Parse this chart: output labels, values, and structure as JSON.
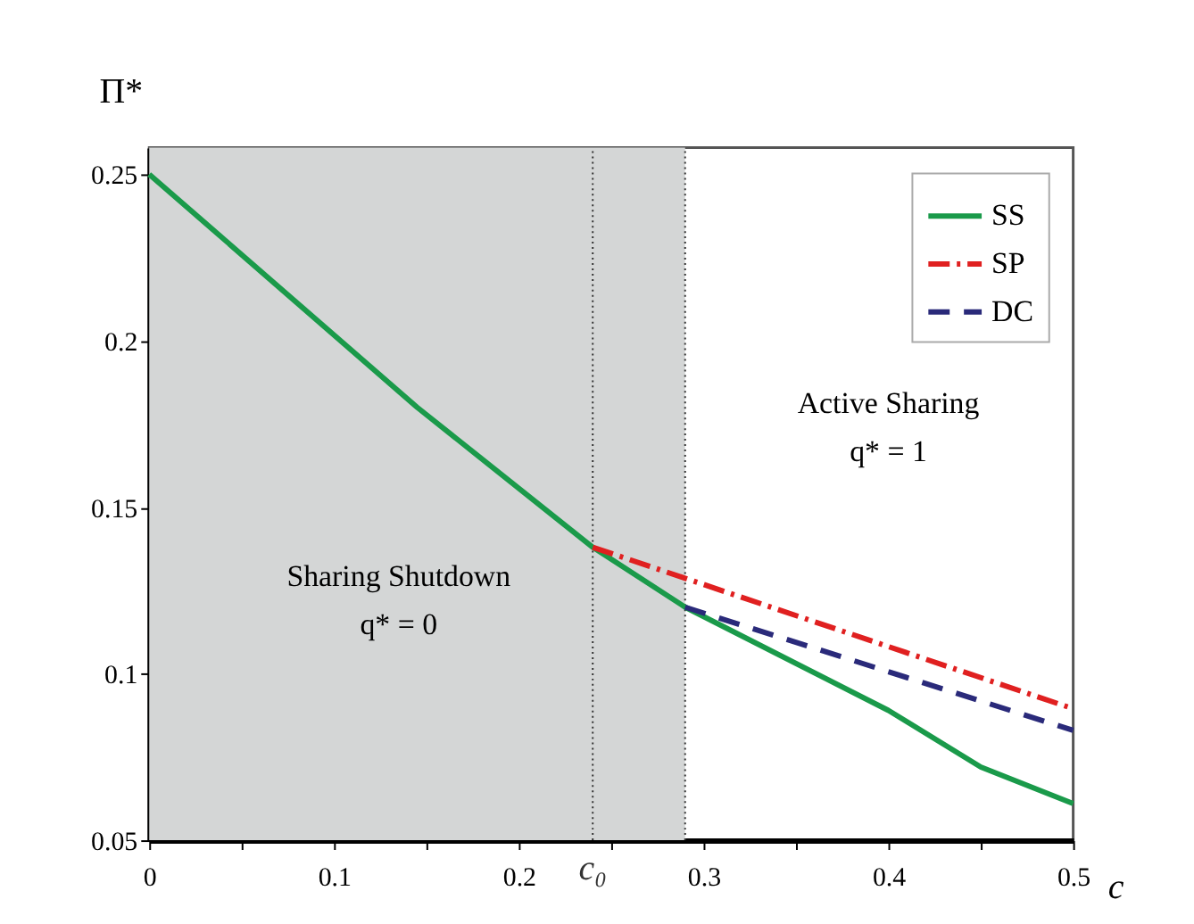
{
  "chart_data": {
    "type": "line",
    "xlabel": "c",
    "ylabel": "Π*",
    "xlim": [
      0,
      0.5
    ],
    "ylim": [
      0.05,
      0.258
    ],
    "xticks": [
      0,
      {
        "value": 0.05,
        "label": null
      },
      0.1,
      {
        "value": 0.15,
        "label": null
      },
      0.2,
      {
        "value": 0.25,
        "label": null
      },
      0.3,
      {
        "value": 0.35,
        "label": null
      },
      0.4,
      {
        "value": 0.45,
        "label": null
      },
      0.5
    ],
    "yticks": [
      0.05,
      0.1,
      0.15,
      0.2,
      0.25
    ],
    "grid": false,
    "legend": "top right",
    "marker": "none",
    "series": [
      {
        "name": "SS",
        "color": "#1a9a4a",
        "line_style": "solid",
        "x": [
          0,
          0.145,
          0.24,
          0.29,
          0.4,
          0.45,
          0.5
        ],
        "values": [
          0.25,
          0.18,
          0.138,
          0.12,
          0.089,
          0.072,
          0.061
        ]
      },
      {
        "name": "SP",
        "color": "#e02020",
        "line_style": "dashdot",
        "x": [
          0.24,
          0.5
        ],
        "values": [
          0.138,
          0.0895
        ]
      },
      {
        "name": "DC",
        "color": "#2a2a7a",
        "line_style": "dashed",
        "x": [
          0.29,
          0.5
        ],
        "values": [
          0.12,
          0.083
        ]
      }
    ],
    "bands": [
      {
        "axis": "x",
        "from": 0,
        "to": 0.29,
        "color": "#d4d6d6"
      }
    ],
    "ref_lines": [
      {
        "axis": "x",
        "value": 0.24,
        "label": "c₀",
        "color": "#333333",
        "line_style": "dotted"
      },
      {
        "axis": "x",
        "value": 0.29,
        "line_style": "dotted"
      }
    ],
    "annotations": [
      "Sharing Shutdown",
      "q* = 0",
      "Active Sharing",
      "q* = 1"
    ]
  }
}
